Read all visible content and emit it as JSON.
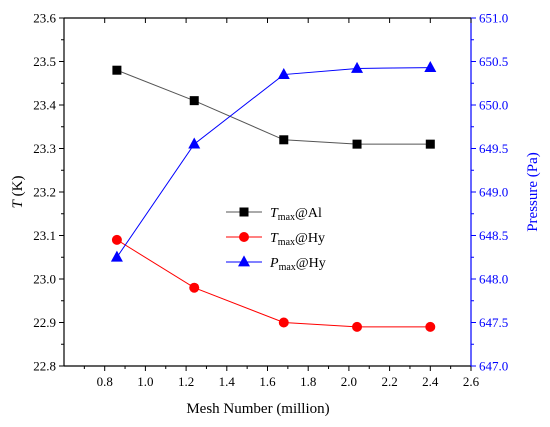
{
  "chart_data": {
    "type": "line",
    "xlabel": "Mesh Number (million)",
    "ylabel_left": {
      "main": "T",
      "unit": " (K)"
    },
    "ylabel_right": "Pressure (Pa)",
    "xlim": [
      0.6,
      2.6
    ],
    "ylim_left": [
      22.8,
      23.6
    ],
    "ylim_right": [
      647.0,
      651.0
    ],
    "xticks": [
      "0.8",
      "1.0",
      "1.2",
      "1.4",
      "1.6",
      "1.8",
      "2.0",
      "2.2",
      "2.4",
      "2.6"
    ],
    "yticks_left": [
      "22.8",
      "22.9",
      "23.0",
      "23.1",
      "23.2",
      "23.3",
      "23.4",
      "23.5",
      "23.6"
    ],
    "yticks_right": [
      "647.0",
      "647.5",
      "648.0",
      "648.5",
      "649.0",
      "649.5",
      "650.0",
      "650.5",
      "651.0"
    ],
    "grid": false,
    "legend_position": "center-left",
    "x": [
      0.86,
      1.24,
      1.68,
      2.04,
      2.4
    ],
    "series": [
      {
        "name": "Tmax@Al",
        "legend": {
          "main": "T",
          "sub": "max",
          "rest": "@Al"
        },
        "axis": "left",
        "color": "#000000",
        "line_color": "#555555",
        "marker": "square",
        "values": [
          23.48,
          23.41,
          23.32,
          23.31,
          23.31
        ]
      },
      {
        "name": "Tmax@Hy",
        "legend": {
          "main": "T",
          "sub": "max",
          "rest": "@Hy"
        },
        "axis": "left",
        "color": "#ff0000",
        "line_color": "#ff0000",
        "marker": "circle",
        "values": [
          23.09,
          22.98,
          22.9,
          22.89,
          22.89
        ]
      },
      {
        "name": "Pmax@Hy",
        "legend": {
          "main": "P",
          "sub": "max",
          "rest": "@Hy"
        },
        "axis": "right",
        "color": "#0000ff",
        "line_color": "#0000ff",
        "marker": "triangle",
        "values": [
          648.25,
          649.55,
          650.35,
          650.42,
          650.43
        ]
      }
    ],
    "colors": {
      "axis": "#000000",
      "right_axis": "#0000ff"
    }
  }
}
